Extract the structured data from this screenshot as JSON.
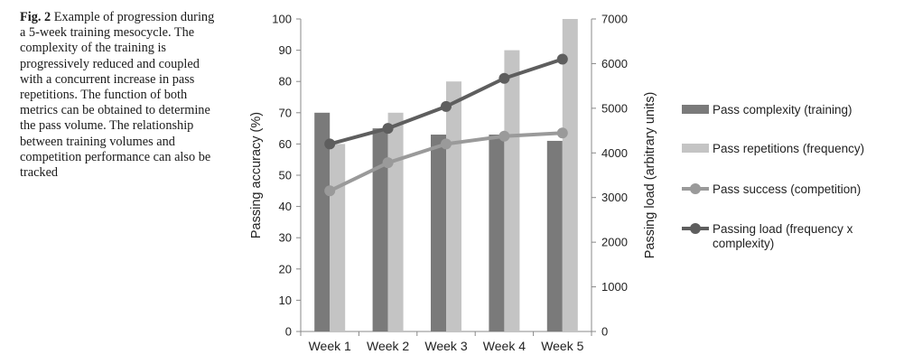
{
  "caption": {
    "label": "Fig. 2",
    "text": "Example of progression during a 5-week training mesocycle. The complexity of the training is progressively reduced and coupled with a concurrent increase in pass repetitions. The function of both metrics can be obtained to determine the pass volume. The relationship between training volumes and competition performance can also be tracked"
  },
  "chart_data": {
    "type": "bar",
    "categories": [
      "Week 1",
      "Week 2",
      "Week 3",
      "Week 4",
      "Week 5"
    ],
    "ylabel": "Passing accuracy (%)",
    "y2label": "Passing load (arbitrary units)",
    "ylim": [
      0,
      100
    ],
    "y2lim": [
      0,
      7000
    ],
    "yticks": [
      0,
      10,
      20,
      30,
      40,
      50,
      60,
      70,
      80,
      90,
      100
    ],
    "y2ticks": [
      0,
      1000,
      2000,
      3000,
      4000,
      5000,
      6000,
      7000
    ],
    "grid": false,
    "legend_position": "right",
    "series": [
      {
        "name": "Pass complexity (training)",
        "kind": "bar",
        "axis": "left",
        "color": "#7a7a7a",
        "values": [
          70,
          65,
          63,
          63,
          61
        ]
      },
      {
        "name": "Pass repetitions (frequency)",
        "kind": "bar",
        "axis": "left",
        "color": "#c4c4c4",
        "values": [
          60,
          70,
          80,
          90,
          100
        ]
      },
      {
        "name": "Pass success (competition)",
        "kind": "line",
        "axis": "left",
        "color": "#9a9a9a",
        "values": [
          45,
          54,
          60,
          62.5,
          63.5
        ]
      },
      {
        "name": "Passing load (frequency x complexity)",
        "kind": "line",
        "axis": "right",
        "color": "#5e5e5e",
        "values": [
          4200,
          4550,
          5040,
          5670,
          6100
        ]
      }
    ]
  }
}
